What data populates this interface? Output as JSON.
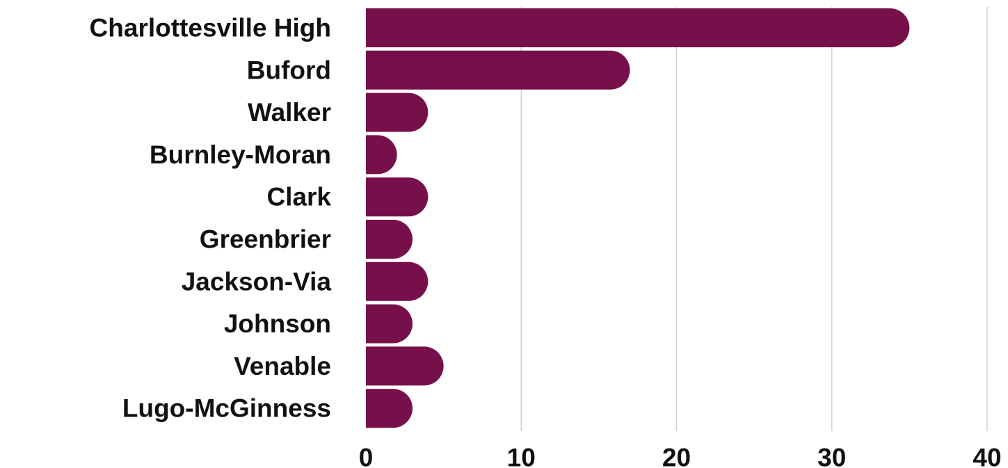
{
  "chart_data": {
    "type": "bar",
    "orientation": "horizontal",
    "title": "",
    "xlabel": "",
    "ylabel": "",
    "categories": [
      "Charlottesville High",
      "Buford",
      "Walker",
      "Burnley-Moran",
      "Clark",
      "Greenbrier",
      "Jackson-Via",
      "Johnson",
      "Venable",
      "Lugo-McGinness"
    ],
    "values": [
      35,
      17,
      4,
      2,
      4,
      3,
      4,
      3,
      5,
      3
    ],
    "xlim": [
      0,
      40
    ],
    "xticks": [
      "0",
      "10",
      "20",
      "30",
      "40"
    ],
    "grid": true,
    "legend": "none",
    "bar_color": "#77104a"
  }
}
